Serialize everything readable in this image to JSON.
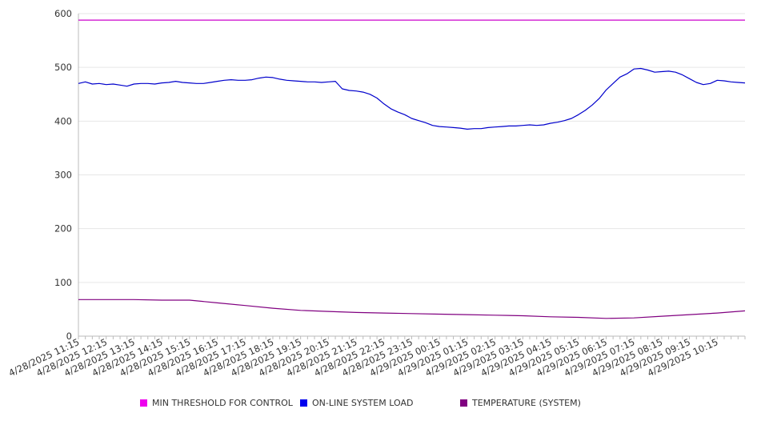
{
  "colors": {
    "threshold": "#cc00cc",
    "load": "#0000cc",
    "temperature": "#800080",
    "grid": "#e6e6e6",
    "axis": "#bbbbbb"
  },
  "legend": [
    {
      "label": "MIN THRESHOLD FOR CONTROL",
      "color": "#ee00ee"
    },
    {
      "label": "ON-LINE SYSTEM LOAD",
      "color": "#0000ee"
    },
    {
      "label": "TEMPERATURE (SYSTEM)",
      "color": "#800080"
    }
  ],
  "chart_data": {
    "type": "line",
    "ylim": [
      0,
      600
    ],
    "y_ticks": [
      "0",
      "100",
      "200",
      "300",
      "400",
      "500",
      "600"
    ],
    "x_tick_labels": [
      "4/28/2025 11:15",
      "4/28/2025 12:15",
      "4/28/2025 13:15",
      "4/28/2025 14:15",
      "4/28/2025 15:15",
      "4/28/2025 16:15",
      "4/28/2025 17:15",
      "4/28/2025 18:15",
      "4/28/2025 19:15",
      "4/28/2025 20:15",
      "4/28/2025 21:15",
      "4/28/2025 22:15",
      "4/28/2025 23:15",
      "4/29/2025 00:15",
      "4/29/2025 01:15",
      "4/29/2025 02:15",
      "4/29/2025 03:15",
      "4/29/2025 04:15",
      "4/29/2025 05:15",
      "4/29/2025 06:15",
      "4/29/2025 07:15",
      "4/29/2025 08:15",
      "4/29/2025 09:15",
      "4/29/2025 10:15"
    ],
    "grid": true,
    "legend_position": "bottom",
    "series": [
      {
        "name": "MIN THRESHOLD FOR CONTROL",
        "color": "#cc00cc",
        "points": [
          [
            "4/28/2025 11:15",
            588
          ],
          [
            "4/29/2025 11:15",
            588
          ]
        ]
      },
      {
        "name": "ON-LINE SYSTEM LOAD",
        "color": "#0000cc",
        "points": [
          [
            "4/28/2025 11:15",
            470
          ],
          [
            "4/28/2025 11:30",
            473
          ],
          [
            "4/28/2025 11:45",
            469
          ],
          [
            "4/28/2025 12:00",
            470
          ],
          [
            "4/28/2025 12:15",
            468
          ],
          [
            "4/28/2025 12:30",
            469
          ],
          [
            "4/28/2025 12:45",
            467
          ],
          [
            "4/28/2025 13:00",
            465
          ],
          [
            "4/28/2025 13:15",
            469
          ],
          [
            "4/28/2025 13:30",
            470
          ],
          [
            "4/28/2025 13:45",
            470
          ],
          [
            "4/28/2025 14:00",
            469
          ],
          [
            "4/28/2025 14:15",
            471
          ],
          [
            "4/28/2025 14:30",
            472
          ],
          [
            "4/28/2025 14:45",
            474
          ],
          [
            "4/28/2025 15:00",
            472
          ],
          [
            "4/28/2025 15:15",
            471
          ],
          [
            "4/28/2025 15:30",
            470
          ],
          [
            "4/28/2025 15:45",
            470
          ],
          [
            "4/28/2025 16:00",
            472
          ],
          [
            "4/28/2025 16:15",
            474
          ],
          [
            "4/28/2025 16:30",
            476
          ],
          [
            "4/28/2025 16:45",
            477
          ],
          [
            "4/28/2025 17:00",
            476
          ],
          [
            "4/28/2025 17:15",
            476
          ],
          [
            "4/28/2025 17:30",
            477
          ],
          [
            "4/28/2025 17:45",
            480
          ],
          [
            "4/28/2025 18:00",
            482
          ],
          [
            "4/28/2025 18:15",
            481
          ],
          [
            "4/28/2025 18:30",
            478
          ],
          [
            "4/28/2025 18:45",
            476
          ],
          [
            "4/28/2025 19:00",
            475
          ],
          [
            "4/28/2025 19:15",
            474
          ],
          [
            "4/28/2025 19:30",
            473
          ],
          [
            "4/28/2025 19:45",
            473
          ],
          [
            "4/28/2025 20:00",
            472
          ],
          [
            "4/28/2025 20:15",
            473
          ],
          [
            "4/28/2025 20:30",
            474
          ],
          [
            "4/28/2025 20:45",
            460
          ],
          [
            "4/28/2025 21:00",
            457
          ],
          [
            "4/28/2025 21:15",
            456
          ],
          [
            "4/28/2025 21:30",
            454
          ],
          [
            "4/28/2025 21:45",
            450
          ],
          [
            "4/28/2025 22:00",
            443
          ],
          [
            "4/28/2025 22:15",
            432
          ],
          [
            "4/28/2025 22:30",
            423
          ],
          [
            "4/28/2025 22:45",
            417
          ],
          [
            "4/28/2025 23:00",
            412
          ],
          [
            "4/28/2025 23:15",
            405
          ],
          [
            "4/28/2025 23:30",
            401
          ],
          [
            "4/28/2025 23:45",
            397
          ],
          [
            "4/29/2025 00:00",
            392
          ],
          [
            "4/29/2025 00:15",
            390
          ],
          [
            "4/29/2025 00:30",
            389
          ],
          [
            "4/29/2025 00:45",
            388
          ],
          [
            "4/29/2025 01:00",
            387
          ],
          [
            "4/29/2025 01:15",
            385
          ],
          [
            "4/29/2025 01:30",
            386
          ],
          [
            "4/29/2025 01:45",
            386
          ],
          [
            "4/29/2025 02:00",
            388
          ],
          [
            "4/29/2025 02:15",
            389
          ],
          [
            "4/29/2025 02:30",
            390
          ],
          [
            "4/29/2025 02:45",
            391
          ],
          [
            "4/29/2025 03:00",
            391
          ],
          [
            "4/29/2025 03:15",
            392
          ],
          [
            "4/29/2025 03:30",
            393
          ],
          [
            "4/29/2025 03:45",
            392
          ],
          [
            "4/29/2025 04:00",
            393
          ],
          [
            "4/29/2025 04:15",
            396
          ],
          [
            "4/29/2025 04:30",
            398
          ],
          [
            "4/29/2025 04:45",
            401
          ],
          [
            "4/29/2025 05:00",
            405
          ],
          [
            "4/29/2025 05:15",
            412
          ],
          [
            "4/29/2025 05:30",
            420
          ],
          [
            "4/29/2025 05:45",
            430
          ],
          [
            "4/29/2025 06:00",
            442
          ],
          [
            "4/29/2025 06:15",
            458
          ],
          [
            "4/29/2025 06:30",
            470
          ],
          [
            "4/29/2025 06:45",
            482
          ],
          [
            "4/29/2025 07:00",
            488
          ],
          [
            "4/29/2025 07:15",
            497
          ],
          [
            "4/29/2025 07:30",
            498
          ],
          [
            "4/29/2025 07:45",
            495
          ],
          [
            "4/29/2025 08:00",
            491
          ],
          [
            "4/29/2025 08:15",
            492
          ],
          [
            "4/29/2025 08:30",
            493
          ],
          [
            "4/29/2025 08:45",
            491
          ],
          [
            "4/29/2025 09:00",
            486
          ],
          [
            "4/29/2025 09:15",
            479
          ],
          [
            "4/29/2025 09:30",
            472
          ],
          [
            "4/29/2025 09:45",
            468
          ],
          [
            "4/29/2025 10:00",
            470
          ],
          [
            "4/29/2025 10:15",
            476
          ],
          [
            "4/29/2025 10:30",
            475
          ],
          [
            "4/29/2025 10:45",
            473
          ],
          [
            "4/29/2025 11:00",
            472
          ],
          [
            "4/29/2025 11:15",
            471
          ]
        ]
      },
      {
        "name": "TEMPERATURE (SYSTEM)",
        "color": "#800080",
        "points": [
          [
            "4/28/2025 11:15",
            68
          ],
          [
            "4/28/2025 12:15",
            68
          ],
          [
            "4/28/2025 13:15",
            68
          ],
          [
            "4/28/2025 14:15",
            67
          ],
          [
            "4/28/2025 15:15",
            67
          ],
          [
            "4/28/2025 16:15",
            62
          ],
          [
            "4/28/2025 17:15",
            57
          ],
          [
            "4/28/2025 18:15",
            52
          ],
          [
            "4/28/2025 19:15",
            48
          ],
          [
            "4/28/2025 20:15",
            46
          ],
          [
            "4/28/2025 21:15",
            44
          ],
          [
            "4/28/2025 22:15",
            43
          ],
          [
            "4/28/2025 23:15",
            42
          ],
          [
            "4/29/2025 00:15",
            41
          ],
          [
            "4/29/2025 01:15",
            40
          ],
          [
            "4/29/2025 02:15",
            39
          ],
          [
            "4/29/2025 03:15",
            38
          ],
          [
            "4/29/2025 04:15",
            36
          ],
          [
            "4/29/2025 05:15",
            35
          ],
          [
            "4/29/2025 06:15",
            33
          ],
          [
            "4/29/2025 07:15",
            34
          ],
          [
            "4/29/2025 08:15",
            37
          ],
          [
            "4/29/2025 09:15",
            40
          ],
          [
            "4/29/2025 10:15",
            43
          ],
          [
            "4/29/2025 11:15",
            47
          ]
        ]
      }
    ]
  }
}
